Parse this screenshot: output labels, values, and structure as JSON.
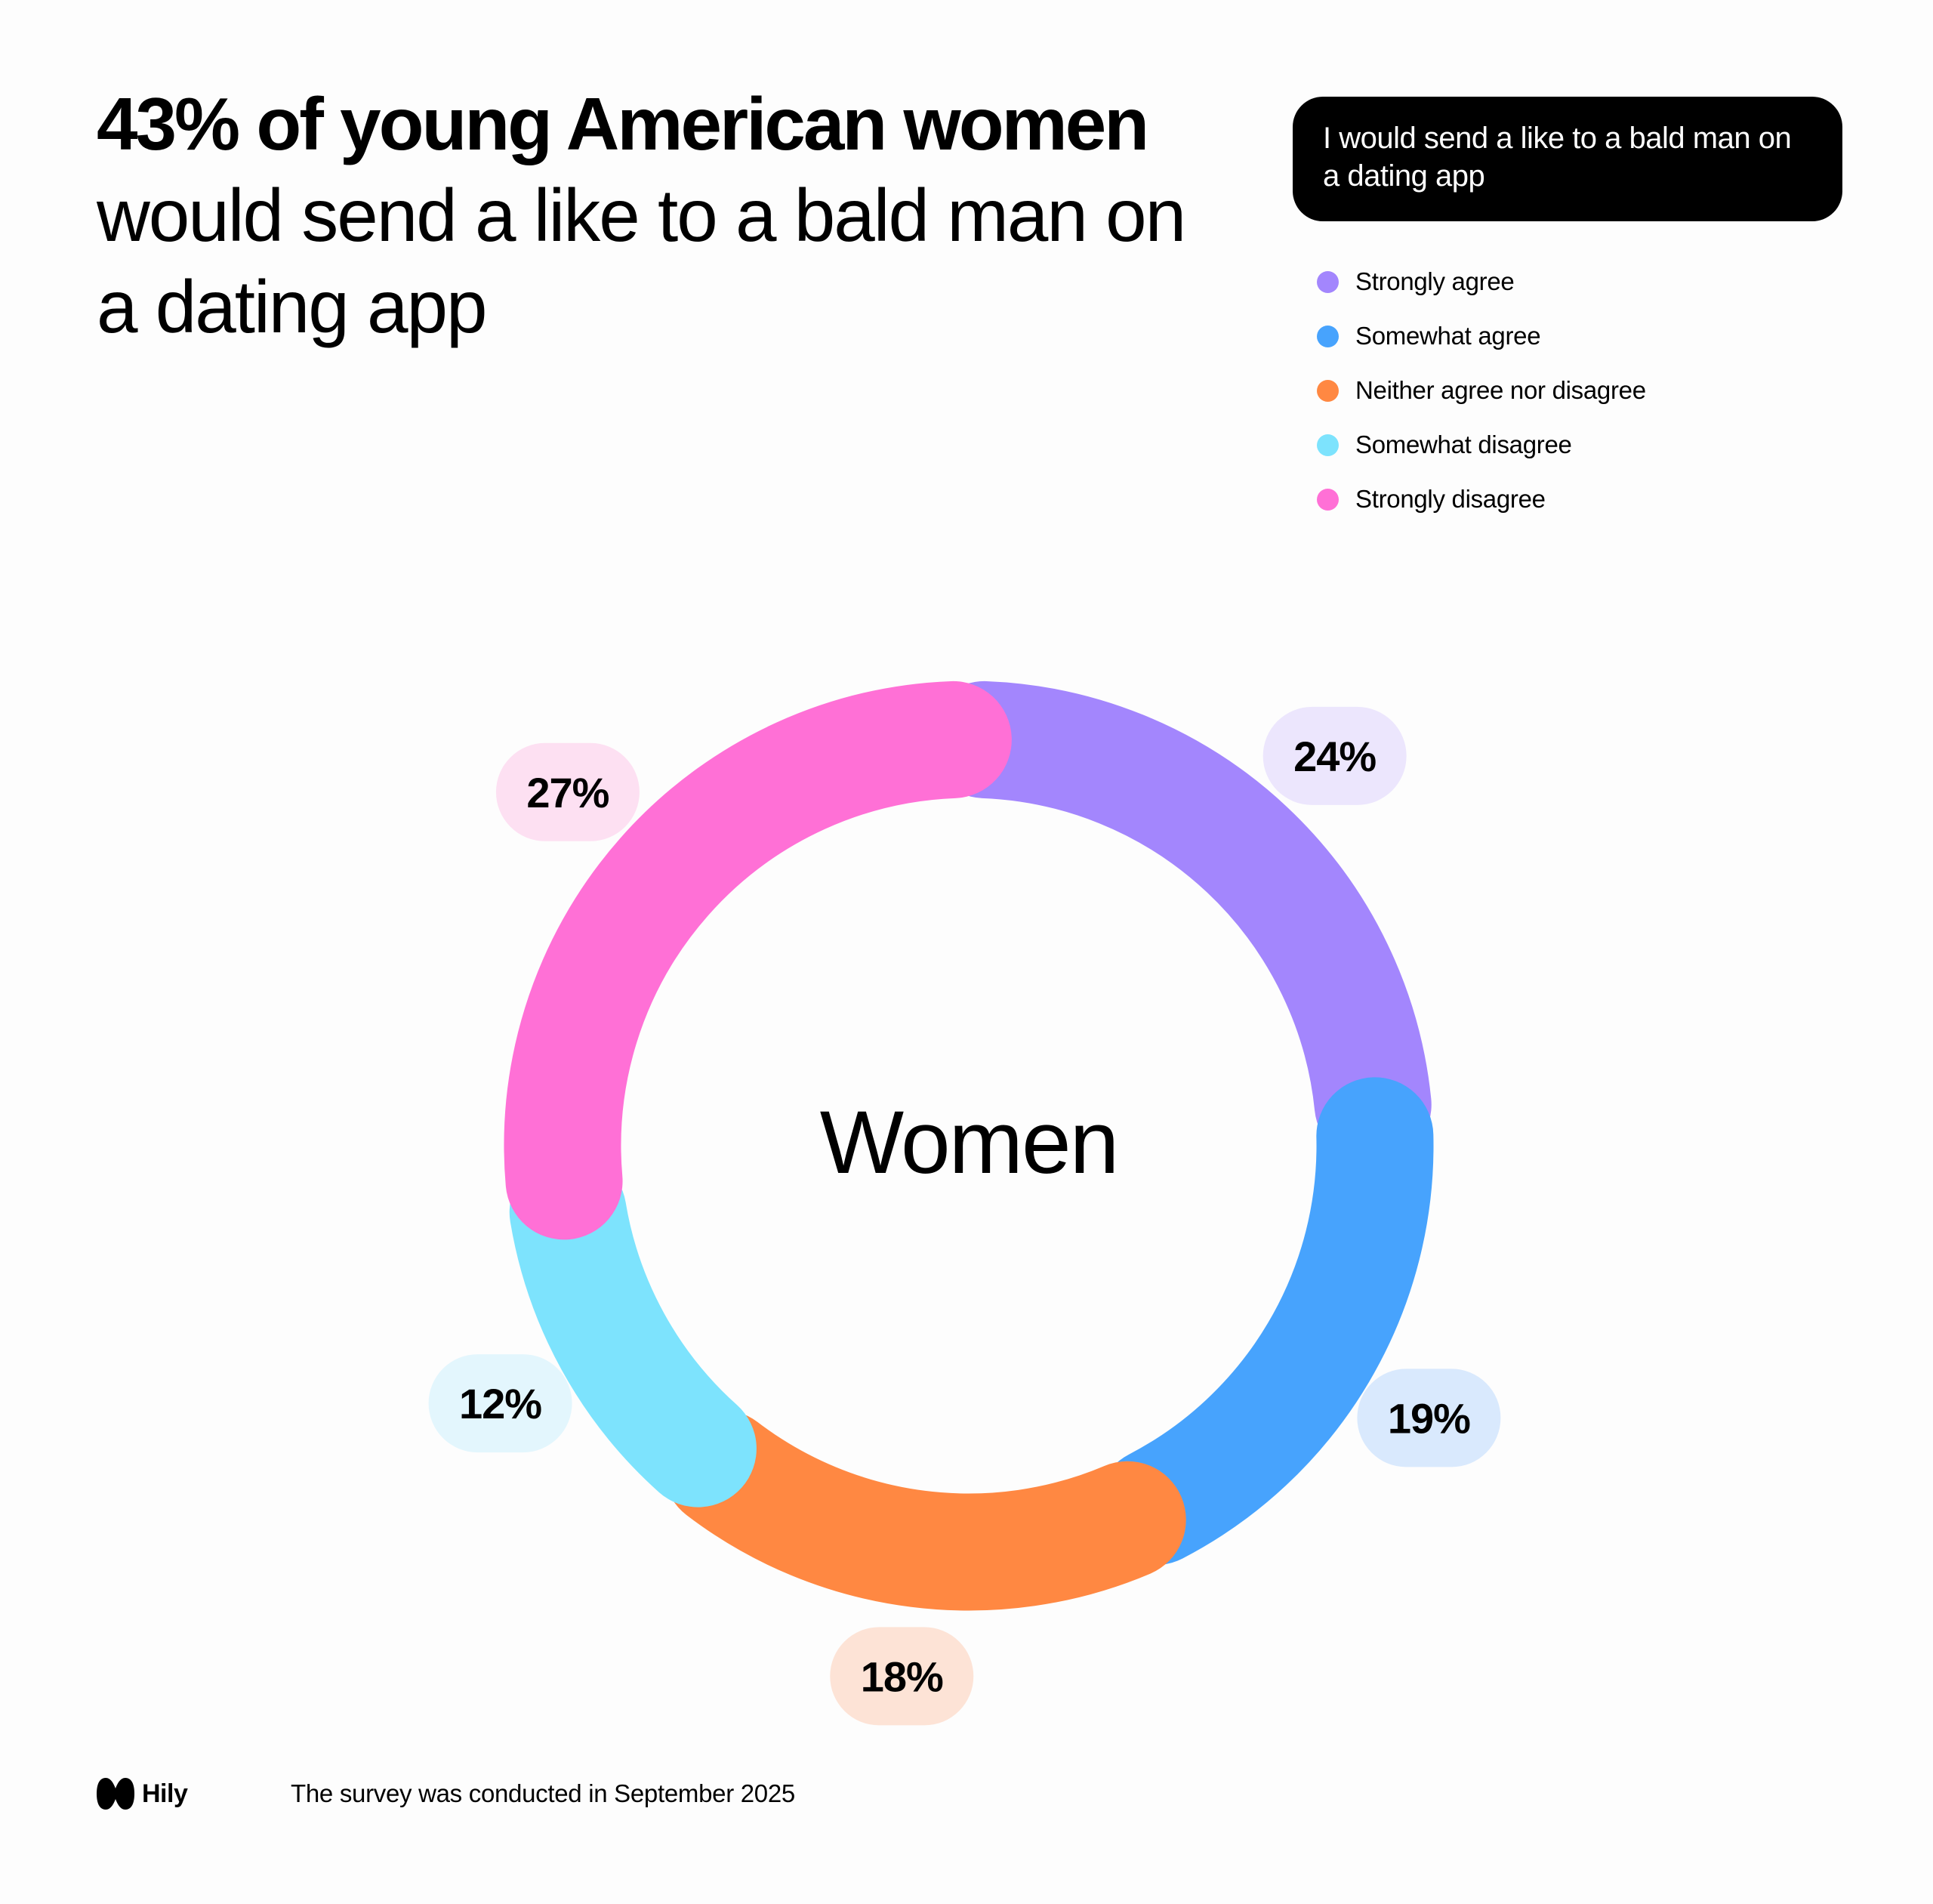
{
  "headline": {
    "bold": "43% of young American women",
    "regular": "would send a like to a bald man on a dating app"
  },
  "question": "I would send a like to a bald man on a dating app",
  "chart_data": {
    "type": "pie",
    "center_label": "Women",
    "categories": [
      "Strongly agree",
      "Somewhat agree",
      "Neither agree nor disagree",
      "Somewhat disagree",
      "Strongly disagree"
    ],
    "values": [
      24,
      19,
      18,
      12,
      27
    ],
    "labels": [
      "24%",
      "19%",
      "18%",
      "12%",
      "27%"
    ],
    "colors": [
      "#a386fd",
      "#47a3fd",
      "#ff8842",
      "#7de3fd",
      "#ff70d6"
    ],
    "pill_colors": [
      "#ece6fd",
      "#d9e9fd",
      "#fde3d6",
      "#e3f6fd",
      "#fde0f2"
    ],
    "legend_placement": "top-right"
  },
  "footer": {
    "brand": "Hily",
    "note": "The survey was conducted in September 2025"
  }
}
